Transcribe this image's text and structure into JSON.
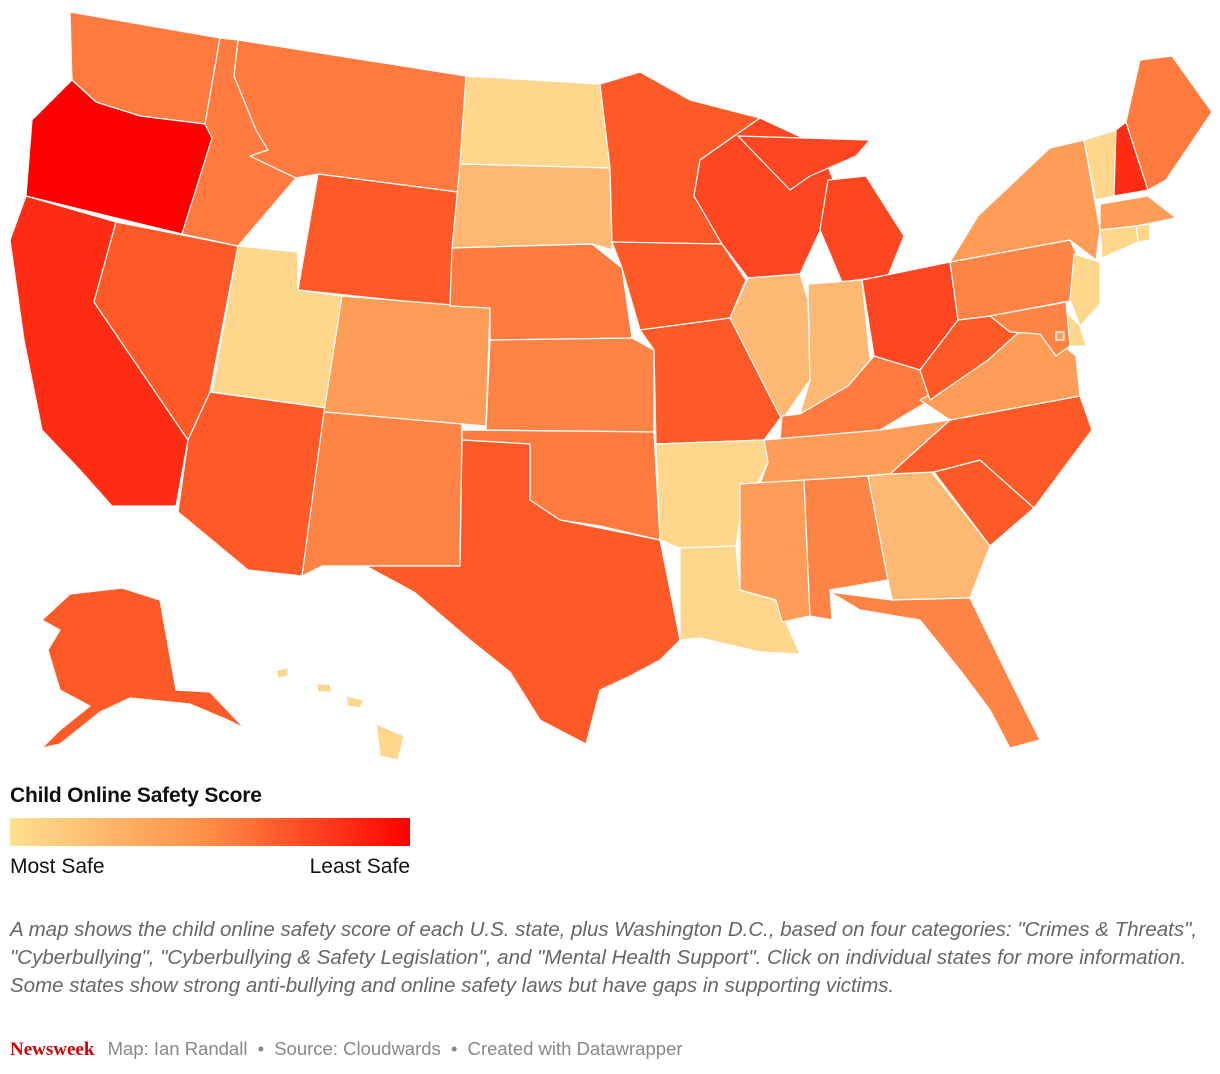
{
  "colors": {
    "legend_start": "#ffe08f",
    "legend_mid": "#ff8c45",
    "legend_end": "#ff0000",
    "score_1": "#fed68c",
    "score_2": "#fdb974",
    "score_3": "#fe9d57",
    "score_4": "#fe8446",
    "score_5": "#fe7a3e",
    "score_6": "#fe5a28",
    "score_7": "#fe4622",
    "score_8": "#fe2c12",
    "score_9": "#ff0000"
  },
  "map": {
    "states": [
      {
        "name": "Washington",
        "score": 5
      },
      {
        "name": "Oregon",
        "score": 9
      },
      {
        "name": "California",
        "score": 8
      },
      {
        "name": "Nevada",
        "score": 6
      },
      {
        "name": "Idaho",
        "score": 5
      },
      {
        "name": "Montana",
        "score": 5
      },
      {
        "name": "Wyoming",
        "score": 6
      },
      {
        "name": "Utah",
        "score": 1
      },
      {
        "name": "Arizona",
        "score": 6
      },
      {
        "name": "Colorado",
        "score": 3
      },
      {
        "name": "New Mexico",
        "score": 4
      },
      {
        "name": "North Dakota",
        "score": 1
      },
      {
        "name": "South Dakota",
        "score": 2
      },
      {
        "name": "Nebraska",
        "score": 5
      },
      {
        "name": "Kansas",
        "score": 4
      },
      {
        "name": "Oklahoma",
        "score": 5
      },
      {
        "name": "Texas",
        "score": 6
      },
      {
        "name": "Minnesota",
        "score": 6
      },
      {
        "name": "Iowa",
        "score": 6
      },
      {
        "name": "Missouri",
        "score": 6
      },
      {
        "name": "Arkansas",
        "score": 1
      },
      {
        "name": "Louisiana",
        "score": 1
      },
      {
        "name": "Wisconsin",
        "score": 7
      },
      {
        "name": "Illinois",
        "score": 2
      },
      {
        "name": "Michigan",
        "score": 7
      },
      {
        "name": "Indiana",
        "score": 2
      },
      {
        "name": "Ohio",
        "score": 7
      },
      {
        "name": "Kentucky",
        "score": 5
      },
      {
        "name": "Tennessee",
        "score": 3
      },
      {
        "name": "Mississippi",
        "score": 3
      },
      {
        "name": "Alabama",
        "score": 4
      },
      {
        "name": "Georgia",
        "score": 2
      },
      {
        "name": "Florida",
        "score": 4
      },
      {
        "name": "South Carolina",
        "score": 6
      },
      {
        "name": "North Carolina",
        "score": 6
      },
      {
        "name": "Virginia",
        "score": 3
      },
      {
        "name": "West Virginia",
        "score": 6
      },
      {
        "name": "Pennsylvania",
        "score": 4
      },
      {
        "name": "New York",
        "score": 3
      },
      {
        "name": "Vermont",
        "score": 1
      },
      {
        "name": "New Hampshire",
        "score": 8
      },
      {
        "name": "Maine",
        "score": 5
      },
      {
        "name": "Massachusetts",
        "score": 3
      },
      {
        "name": "Rhode Island",
        "score": 1
      },
      {
        "name": "Connecticut",
        "score": 1
      },
      {
        "name": "New Jersey",
        "score": 1
      },
      {
        "name": "Delaware",
        "score": 1
      },
      {
        "name": "Maryland",
        "score": 4
      },
      {
        "name": "Washington D.C.",
        "score": 3
      },
      {
        "name": "Alaska",
        "score": 6
      },
      {
        "name": "Hawaii",
        "score": 1
      }
    ]
  },
  "legend": {
    "title": "Child Online Safety Score",
    "low_label": "Most Safe",
    "high_label": "Least Safe"
  },
  "caption": "A map shows the child online safety score of each U.S. state, plus Washington D.C., based on four categories: \"Crimes & Threats\", \"Cyberbullying\", \"Cyberbullying & Safety Legislation\", and \"Mental Health Support\". Click on individual states for more information. Some states show strong anti-bullying and online safety laws but have gaps in supporting victims.",
  "footer": {
    "brand": "Newsweek",
    "credit_map": "Map: Ian Randall",
    "separator": "•",
    "credit_source": "Source: Cloudwards",
    "credit_tool": "Created with Datawrapper"
  }
}
